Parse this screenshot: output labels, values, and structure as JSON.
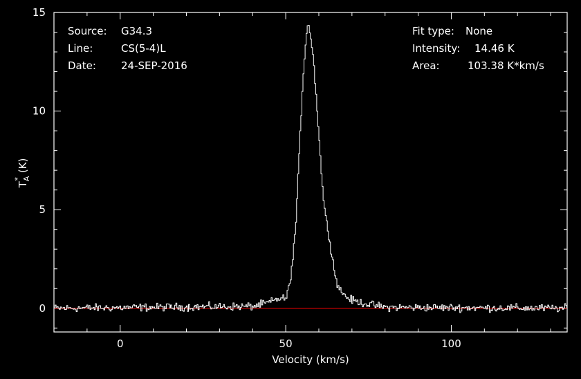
{
  "chart_data": {
    "type": "line",
    "title": "",
    "xlabel": "Velocity (km/s)",
    "ylabel_main": "T",
    "ylabel_sub": "A",
    "ylabel_sup": "*",
    "ylabel_unit": "(K)",
    "xlim": [
      -20,
      135
    ],
    "ylim": [
      -1.2,
      15
    ],
    "x_ticks": [
      0,
      50,
      100
    ],
    "y_ticks": [
      0,
      5,
      10,
      15
    ],
    "baseline": 0,
    "colors": {
      "spectrum": "#ffffff",
      "baseline": "#ff0000",
      "frame": "#ffffff",
      "background": "#000000"
    },
    "grid": false,
    "legend": "none",
    "info_left": [
      {
        "label": "Source:",
        "value": "G34.3"
      },
      {
        "label": "Line:",
        "value": "CS(5-4)L"
      },
      {
        "label": "Date:",
        "value": "24-SEP-2016"
      }
    ],
    "info_right": [
      {
        "label": "Fit type:",
        "value": "None"
      },
      {
        "label": "Intensity:",
        "value": "14.46 K"
      },
      {
        "label": "Area:",
        "value": "103.38 K*km/s"
      }
    ],
    "series": [
      {
        "x": [
          -20,
          40,
          45,
          48,
          50,
          51,
          52,
          53,
          54,
          55,
          56,
          56.5,
          57,
          58,
          59,
          60,
          61,
          62,
          63,
          64,
          65,
          66,
          68,
          70,
          75,
          80,
          135
        ],
        "y": [
          0,
          0.1,
          0.3,
          0.5,
          0.5,
          1.2,
          2.5,
          4.5,
          8.0,
          11.5,
          13.8,
          14.46,
          14.2,
          13.0,
          11.0,
          8.5,
          6.0,
          4.5,
          3.6,
          2.5,
          1.5,
          1.0,
          0.6,
          0.4,
          0.2,
          0.05,
          0
        ],
        "noise": 0.12
      }
    ]
  }
}
